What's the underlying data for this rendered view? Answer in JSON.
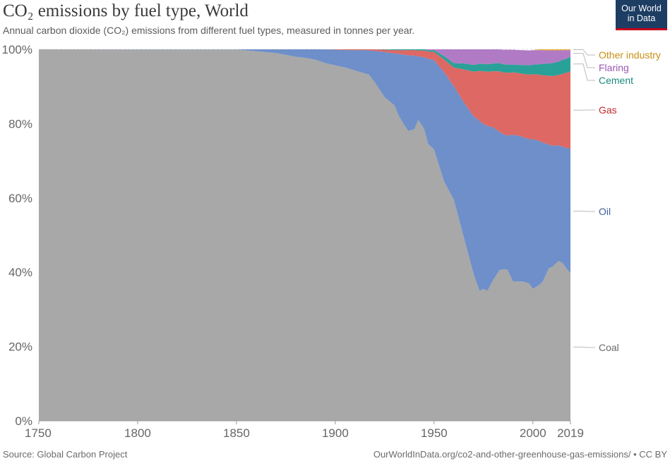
{
  "title": "CO₂ emissions by fuel type, World",
  "subtitle": "Annual carbon dioxide (CO₂) emissions from different fuel types, measured in tonnes per year.",
  "logo": {
    "line1": "Our World",
    "line2": "in Data"
  },
  "footer": {
    "source": "Source: Global Carbon Project",
    "url": "OurWorldInData.org/co2-and-other-greenhouse-gas-emissions/ • CC BY"
  },
  "chart_data": {
    "type": "area",
    "stacked_percent": true,
    "title": "CO₂ emissions by fuel type, World",
    "xlim": [
      1750,
      2019
    ],
    "ylim": [
      0,
      100
    ],
    "x_ticks": [
      {
        "value": 1750,
        "label": "1750"
      },
      {
        "value": 1800,
        "label": "1800"
      },
      {
        "value": 1850,
        "label": "1850"
      },
      {
        "value": 1900,
        "label": "1900"
      },
      {
        "value": 1950,
        "label": "1950"
      },
      {
        "value": 2000,
        "label": "2000"
      },
      {
        "value": 2019,
        "label": "2019"
      }
    ],
    "y_ticks": [
      {
        "value": 0,
        "label": "0%"
      },
      {
        "value": 20,
        "label": "20%"
      },
      {
        "value": 40,
        "label": "40%"
      },
      {
        "value": 60,
        "label": "60%"
      },
      {
        "value": 80,
        "label": "80%"
      },
      {
        "value": 100,
        "label": "100%"
      }
    ],
    "x": [
      1750,
      1850,
      1860,
      1870,
      1880,
      1885,
      1890,
      1895,
      1900,
      1905,
      1910,
      1915,
      1917,
      1920,
      1925,
      1930,
      1932,
      1935,
      1937,
      1940,
      1942,
      1945,
      1947,
      1950,
      1955,
      1960,
      1965,
      1970,
      1973,
      1975,
      1977,
      1980,
      1983,
      1985,
      1987,
      1990,
      1993,
      1995,
      1998,
      2000,
      2003,
      2005,
      2008,
      2010,
      2013,
      2015,
      2017,
      2019
    ],
    "series": [
      {
        "name": "Coal",
        "color": "#a8a8a8",
        "values": [
          100,
          99.95,
          99.5,
          99,
          98,
          97.7,
          97.2,
          96.3,
          95.7,
          95.1,
          94.3,
          93.5,
          93.2,
          91.1,
          87.1,
          84.9,
          82.2,
          79.5,
          78.0,
          78.5,
          81.0,
          78.5,
          74.5,
          73.0,
          64.5,
          59.5,
          49.5,
          39.5,
          35.0,
          35.5,
          35.0,
          38.0,
          40.5,
          40.8,
          40.8,
          37.5,
          37.5,
          37.5,
          37.0,
          35.5,
          36.5,
          37.5,
          41.0,
          41.5,
          43.0,
          42.5,
          41.0,
          39.7
        ]
      },
      {
        "name": "Oil",
        "color": "#6e8fc9",
        "values": [
          0,
          0.05,
          0.5,
          1,
          2,
          2.3,
          2.8,
          3.7,
          4.2,
          4.7,
          5.5,
          6.3,
          6.5,
          8.5,
          12.2,
          14.0,
          16.6,
          19.0,
          20.4,
          19.8,
          17.1,
          19.4,
          23.0,
          24.1,
          29.4,
          30.6,
          36.3,
          42.5,
          45.8,
          44.4,
          44.4,
          41.0,
          37.3,
          36.4,
          36.0,
          39.5,
          39.2,
          38.9,
          38.8,
          40.3,
          38.9,
          37.4,
          33.4,
          32.5,
          31.2,
          31.3,
          32.5,
          33.5
        ]
      },
      {
        "name": "Gas",
        "color": "#dd6864",
        "values": [
          0,
          0,
          0,
          0,
          0,
          0,
          0,
          0,
          0.1,
          0.2,
          0.2,
          0.2,
          0.3,
          0.4,
          0.6,
          0.9,
          1.0,
          1.3,
          1.4,
          1.5,
          1.6,
          1.8,
          1.9,
          2.2,
          3.4,
          5.0,
          8.8,
          12.0,
          13.4,
          14.2,
          14.6,
          15.1,
          16.3,
          16.6,
          16.9,
          16.8,
          16.9,
          17.0,
          17.4,
          17.5,
          17.8,
          18.1,
          18.5,
          18.8,
          18.9,
          19.6,
          20.2,
          20.9
        ]
      },
      {
        "name": "Cement",
        "color": "#2aa198",
        "values": [
          0,
          0,
          0,
          0,
          0,
          0,
          0,
          0,
          0,
          0,
          0,
          0,
          0,
          0,
          0.1,
          0.2,
          0.2,
          0.2,
          0.2,
          0.2,
          0.3,
          0.3,
          0.3,
          0.5,
          0.9,
          1.2,
          1.6,
          1.8,
          1.9,
          2.0,
          2.0,
          2.1,
          2.2,
          2.2,
          2.2,
          2.1,
          2.2,
          2.4,
          2.5,
          2.6,
          2.8,
          3.1,
          3.3,
          3.5,
          3.6,
          3.8,
          3.8,
          3.9
        ]
      },
      {
        "name": "Flaring",
        "color": "#b07bc4",
        "values": [
          0,
          0,
          0,
          0,
          0,
          0,
          0,
          0,
          0,
          0,
          0,
          0,
          0,
          0,
          0,
          0,
          0,
          0,
          0,
          0,
          0,
          0,
          0.3,
          0.2,
          1.8,
          3.7,
          3.8,
          4.2,
          3.9,
          3.9,
          4.0,
          3.8,
          3.7,
          3.9,
          4.0,
          4.0,
          4.0,
          4.0,
          4.0,
          3.9,
          3.8,
          3.7,
          3.5,
          3.5,
          3.0,
          2.6,
          2.3,
          1.8
        ]
      },
      {
        "name": "Other industry",
        "color": "#e8a931",
        "values": [
          0,
          0,
          0,
          0,
          0,
          0,
          0,
          0,
          0,
          0,
          0,
          0,
          0,
          0,
          0,
          0,
          0,
          0,
          0,
          0,
          0,
          0,
          0,
          0,
          0,
          0,
          0,
          0,
          0,
          0,
          0,
          0,
          0,
          0,
          0,
          0,
          0,
          0,
          0,
          0,
          0.2,
          0.2,
          0.3,
          0.2,
          0.3,
          0.2,
          0.2,
          0.2
        ]
      }
    ]
  }
}
